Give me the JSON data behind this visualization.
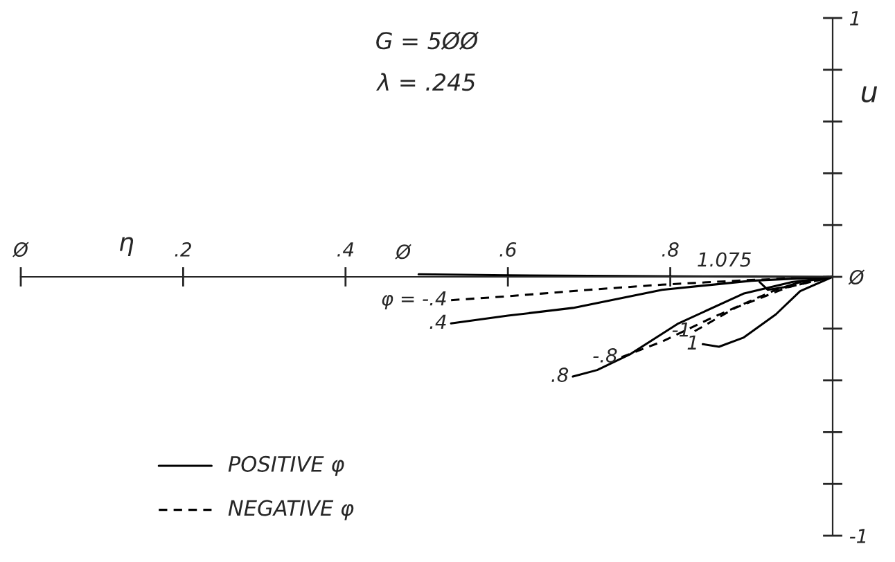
{
  "chart_data": {
    "type": "line",
    "title": "G = 5ØØ",
    "subtitle": "λ = .245",
    "xlabel": "η",
    "ylabel": "u",
    "xlim": [
      0,
      1
    ],
    "ylim": [
      -1,
      1
    ],
    "xticks": [
      {
        "value": 0,
        "label": "Ø"
      },
      {
        "value": 0.2,
        "label": ".2"
      },
      {
        "value": 0.4,
        "label": ".4"
      },
      {
        "value": 0.6,
        "label": ".6"
      },
      {
        "value": 0.8,
        "label": ".8"
      }
    ],
    "yticks": [
      {
        "value": -1,
        "label": "-1"
      },
      {
        "value": -0.8,
        "label": null
      },
      {
        "value": -0.6,
        "label": null
      },
      {
        "value": -0.4,
        "label": null
      },
      {
        "value": -0.2,
        "label": null
      },
      {
        "value": 0,
        "label": "Ø"
      },
      {
        "value": 0.2,
        "label": null
      },
      {
        "value": 0.4,
        "label": null
      },
      {
        "value": 0.6,
        "label": null
      },
      {
        "value": 0.8,
        "label": null
      },
      {
        "value": 1,
        "label": "1"
      }
    ],
    "grid": false,
    "marker": "none",
    "annotations": [
      "POSITIVE φ",
      "NEGATIVE φ"
    ],
    "series": [
      {
        "name": "Ø",
        "color": "#000000",
        "line_style": "solid",
        "x": [
          0.49,
          0.6,
          0.7,
          0.8,
          0.9,
          1.0
        ],
        "values": [
          0.01,
          0.006,
          0.004,
          0.002,
          0.001,
          0
        ]
      },
      {
        "name": "φ = -.4",
        "color": "#000000",
        "line_style": "dashed",
        "x": [
          0.53,
          0.6,
          0.7,
          0.79,
          0.9,
          1.0
        ],
        "values": [
          -0.09,
          -0.075,
          -0.05,
          -0.03,
          -0.012,
          0
        ]
      },
      {
        "name": ".4",
        "color": "#000000",
        "line_style": "solid",
        "x": [
          0.53,
          0.6,
          0.68,
          0.79,
          0.9,
          1.0
        ],
        "values": [
          -0.18,
          -0.15,
          -0.12,
          -0.05,
          -0.015,
          0
        ]
      },
      {
        "name": ".8",
        "color": "#000000",
        "line_style": "solid",
        "x": [
          0.68,
          0.71,
          0.75,
          0.81,
          0.89,
          0.95,
          1.0
        ],
        "values": [
          -0.385,
          -0.36,
          -0.3,
          -0.18,
          -0.065,
          -0.02,
          0
        ]
      },
      {
        "name": "-.8",
        "color": "#000000",
        "line_style": "dashed",
        "x": [
          0.74,
          0.79,
          0.85,
          0.93,
          1.0
        ],
        "values": [
          -0.31,
          -0.25,
          -0.16,
          -0.05,
          0
        ]
      },
      {
        "name": "-1",
        "color": "#000000",
        "line_style": "dashed",
        "x": [
          0.83,
          0.88,
          0.945,
          1.0
        ],
        "values": [
          -0.21,
          -0.12,
          -0.04,
          0
        ]
      },
      {
        "name": "1",
        "color": "#000000",
        "line_style": "solid",
        "x": [
          0.84,
          0.86,
          0.89,
          0.93,
          0.96,
          1.0
        ],
        "values": [
          -0.26,
          -0.27,
          -0.235,
          -0.145,
          -0.055,
          0
        ]
      },
      {
        "name": "1.075",
        "color": "#000000",
        "line_style": "solid",
        "x": [
          0.91,
          0.92,
          0.94,
          0.96,
          1.0
        ],
        "values": [
          -0.02,
          -0.05,
          -0.04,
          -0.02,
          0
        ]
      }
    ]
  }
}
